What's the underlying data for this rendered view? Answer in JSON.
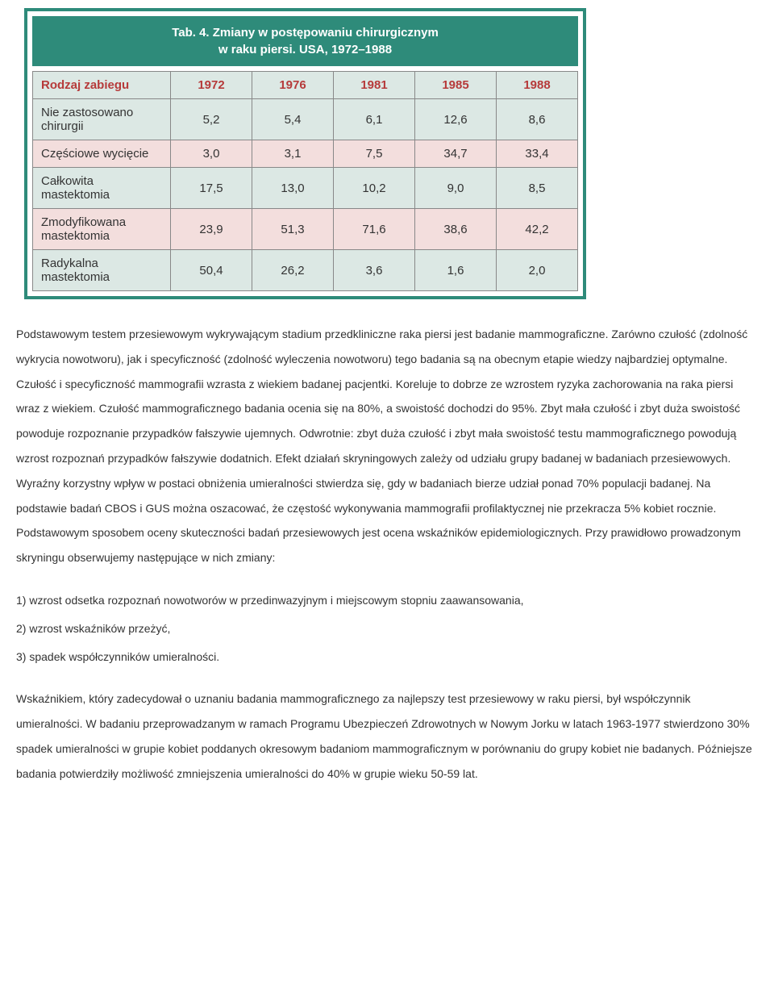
{
  "table": {
    "title_line1": "Tab. 4. Zmiany w postępowaniu chirurgicznym",
    "title_line2": "w raku piersi. USA, 1972–1988",
    "columns": [
      "Rodzaj zabiegu",
      "1972",
      "1976",
      "1981",
      "1985",
      "1988"
    ],
    "rows": [
      {
        "label": "Nie zastosowano chirurgii",
        "values": [
          "5,2",
          "5,4",
          "6,1",
          "12,6",
          "8,6"
        ],
        "band": "odd"
      },
      {
        "label": "Częściowe wycięcie",
        "values": [
          "3,0",
          "3,1",
          "7,5",
          "34,7",
          "33,4"
        ],
        "band": "even"
      },
      {
        "label": "Całkowita mastektomia",
        "values": [
          "17,5",
          "13,0",
          "10,2",
          "9,0",
          "8,5"
        ],
        "band": "odd"
      },
      {
        "label": "Zmodyfikowana mastektomia",
        "values": [
          "23,9",
          "51,3",
          "71,6",
          "38,6",
          "42,2"
        ],
        "band": "even"
      },
      {
        "label": "Radykalna mastektomia",
        "values": [
          "50,4",
          "26,2",
          "3,6",
          "1,6",
          "2,0"
        ],
        "band": "odd"
      }
    ],
    "colors": {
      "frame": "#2e8b7a",
      "header_bg": "#2e8b7a",
      "header_text": "#ffffff",
      "th_bg": "#dce8e4",
      "th_text": "#b63a3a",
      "band_odd": "#dce8e4",
      "band_even": "#f3dedd",
      "border": "#888888"
    }
  },
  "paragraphs": {
    "p1": "Podstawowym testem przesiewowym wykrywającym stadium przedkliniczne raka piersi jest badanie mammograficzne. Zarówno czułość (zdolność wykrycia nowotworu), jak i specyficzność (zdolność wyleczenia nowotworu) tego badania są na obecnym etapie wiedzy najbardziej optymalne. Czułość i specyficzność mammografii wzrasta z wiekiem badanej pacjentki. Koreluje to dobrze ze wzrostem ryzyka zachorowania na raka piersi wraz z wiekiem. Czułość mammograficznego badania ocenia się na 80%, a swoistość dochodzi do 95%. Zbyt mała czułość i zbyt duża swoistość powoduje rozpoznanie przypadków fałszywie ujemnych. Odwrotnie: zbyt duża czułość i zbyt mała swoistość testu mammograficznego powodują wzrost rozpoznań przypadków fałszywie dodatnich. Efekt działań skryningowych zależy od udziału grupy badanej w badaniach przesiewowych. Wyraźny korzystny wpływ w postaci obniżenia umieralności stwierdza się, gdy w badaniach bierze udział ponad 70% populacji badanej. Na podstawie badań CBOS i GUS można oszacować, że częstość wykonywania mammografii profilaktycznej nie przekracza 5% kobiet rocznie. Podstawowym sposobem oceny skuteczności badań przesiewowych jest ocena wskaźników epidemiologicznych. Przy prawidłowo prowadzonym skryningu obserwujemy następujące w nich zmiany:",
    "l1": "1) wzrost odsetka rozpoznań nowotworów w przedinwazyjnym i miejscowym stopniu zaawansowania,",
    "l2": "2) wzrost wskaźników przeżyć,",
    "l3": "3) spadek współczynników umieralności.",
    "p2": "Wskaźnikiem, który zadecydował o uznaniu badania mammograficznego za najlepszy test przesiewowy w raku piersi, był współczynnik umieralności. W badaniu przeprowadzanym w ramach Programu Ubezpieczeń Zdrowotnych w Nowym Jorku w latach 1963-1977 stwierdzono 30% spadek umieralności w grupie kobiet poddanych okresowym badaniom mammograficznym w porównaniu do grupy kobiet nie badanych. Późniejsze badania potwierdziły możliwość zmniejszenia umieralności do 40% w grupie wieku 50-59 lat."
  }
}
